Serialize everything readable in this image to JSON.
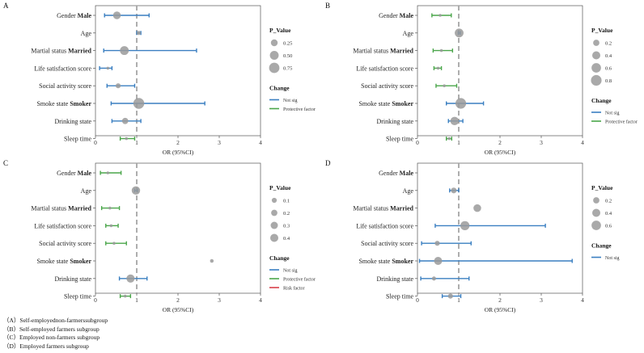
{
  "captions": [
    "（A）Self-employednon-farmerssubgroup",
    "（B）Self-employed farmers subgroup",
    "（C）Employed non-farmers subgroup",
    "（D）Employed farmers subgroup"
  ],
  "colors": {
    "not_sig": "#3a7fc1",
    "protective": "#4aa64a",
    "risk": "#d9404a",
    "point": "#9a9a9a",
    "refline": "#a6a6a6"
  },
  "chart_data": [
    {
      "panel": "A",
      "type": "scatter",
      "xlabel": "OR (95%CI)",
      "xlim": [
        0,
        4
      ],
      "xticks": [
        "0",
        "1",
        "2",
        "3",
        "4"
      ],
      "reference_line": 1,
      "size_legend_title": "P_Value",
      "size_legend": [
        {
          "label": "0.25",
          "value": 0.25
        },
        {
          "label": "0.50",
          "value": 0.5
        },
        {
          "label": "0.75",
          "value": 0.75
        }
      ],
      "color_legend_title": "Change",
      "color_legend": [
        {
          "label": "Not sig",
          "key": "not_sig"
        },
        {
          "label": "Protective factor",
          "key": "protective"
        }
      ],
      "rows": [
        {
          "label_prefix": "Gender",
          "label_bold": "Male",
          "or": 0.52,
          "lo": 0.22,
          "hi": 1.3,
          "p": 0.35,
          "change": "not_sig"
        },
        {
          "label_prefix": "Age",
          "label_bold": "",
          "or": 1.05,
          "lo": 1.0,
          "hi": 1.1,
          "p": 0.05,
          "change": "not_sig"
        },
        {
          "label_prefix": "Martial status",
          "label_bold": "Married",
          "or": 0.7,
          "lo": 0.2,
          "hi": 2.45,
          "p": 0.5,
          "change": "not_sig"
        },
        {
          "label_prefix": "Life satisfaction score",
          "label_bold": "",
          "or": 0.3,
          "lo": 0.1,
          "hi": 0.4,
          "p": 0.01,
          "change": "not_sig"
        },
        {
          "label_prefix": "Social activity score",
          "label_bold": "",
          "or": 0.55,
          "lo": 0.28,
          "hi": 0.95,
          "p": 0.1,
          "change": "not_sig"
        },
        {
          "label_prefix": "Smoke state",
          "label_bold": "Smoker",
          "or": 1.05,
          "lo": 0.38,
          "hi": 2.65,
          "p": 0.85,
          "change": "not_sig"
        },
        {
          "label_prefix": "Drinking state",
          "label_bold": "",
          "or": 0.72,
          "lo": 0.4,
          "hi": 1.1,
          "p": 0.2,
          "change": "not_sig"
        },
        {
          "label_prefix": "Sleep time",
          "label_bold": "",
          "or": 0.75,
          "lo": 0.6,
          "hi": 0.95,
          "p": 0.01,
          "change": "protective"
        }
      ]
    },
    {
      "panel": "B",
      "type": "scatter",
      "xlabel": "OR (95%CI)",
      "xlim": [
        0,
        4
      ],
      "xticks": [
        "0",
        "1",
        "2",
        "3",
        "4"
      ],
      "reference_line": 1,
      "size_legend_title": "P_Value",
      "size_legend": [
        {
          "label": "0.2",
          "value": 0.2
        },
        {
          "label": "0.4",
          "value": 0.4
        },
        {
          "label": "0.6",
          "value": 0.6
        },
        {
          "label": "0.8",
          "value": 0.8
        }
      ],
      "color_legend_title": "Change",
      "color_legend": [
        {
          "label": "Not sig",
          "key": "not_sig"
        },
        {
          "label": "Protective factor",
          "key": "protective"
        }
      ],
      "rows": [
        {
          "label_prefix": "Gender",
          "label_bold": "Male",
          "or": 0.55,
          "lo": 0.35,
          "hi": 0.82,
          "p": 0.01,
          "change": "protective"
        },
        {
          "label_prefix": "Age",
          "label_bold": "",
          "or": 1.01,
          "lo": 0.99,
          "hi": 1.04,
          "p": 0.5,
          "change": "not_sig"
        },
        {
          "label_prefix": "Martial status",
          "label_bold": "Married",
          "or": 0.58,
          "lo": 0.38,
          "hi": 0.85,
          "p": 0.01,
          "change": "protective"
        },
        {
          "label_prefix": "Life satisfaction score",
          "label_bold": "",
          "or": 0.5,
          "lo": 0.4,
          "hi": 0.58,
          "p": 0.01,
          "change": "protective"
        },
        {
          "label_prefix": "Social activity score",
          "label_bold": "",
          "or": 0.65,
          "lo": 0.45,
          "hi": 0.95,
          "p": 0.01,
          "change": "protective"
        },
        {
          "label_prefix": "Smoke state",
          "label_bold": "Smoker",
          "or": 1.05,
          "lo": 0.7,
          "hi": 1.6,
          "p": 0.8,
          "change": "not_sig"
        },
        {
          "label_prefix": "Drinking state",
          "label_bold": "",
          "or": 0.9,
          "lo": 0.75,
          "hi": 1.1,
          "p": 0.45,
          "change": "not_sig"
        },
        {
          "label_prefix": "Sleep time",
          "label_bold": "",
          "or": 0.77,
          "lo": 0.7,
          "hi": 0.83,
          "p": 0.01,
          "change": "protective"
        }
      ]
    },
    {
      "panel": "C",
      "type": "scatter",
      "xlabel": "OR (95%CI)",
      "xlim": [
        0,
        4
      ],
      "xticks": [
        "0",
        "1",
        "2",
        "3",
        "4"
      ],
      "reference_line": 1,
      "size_legend_title": "P_Value",
      "size_legend": [
        {
          "label": "0.1",
          "value": 0.1
        },
        {
          "label": "0.2",
          "value": 0.2
        },
        {
          "label": "0.3",
          "value": 0.3
        },
        {
          "label": "0.4",
          "value": 0.4
        }
      ],
      "color_legend_title": "Change",
      "color_legend": [
        {
          "label": "Not sig",
          "key": "not_sig"
        },
        {
          "label": "Protective factor",
          "key": "protective"
        },
        {
          "label": "Risk factor",
          "key": "risk"
        }
      ],
      "rows": [
        {
          "label_prefix": "Gender",
          "label_bold": "Male",
          "or": 0.3,
          "lo": 0.12,
          "hi": 0.62,
          "p": 0.01,
          "change": "protective"
        },
        {
          "label_prefix": "Age",
          "label_bold": "",
          "or": 0.98,
          "lo": 0.95,
          "hi": 1.02,
          "p": 0.45,
          "change": "not_sig"
        },
        {
          "label_prefix": "Martial status",
          "label_bold": "Married",
          "or": 0.35,
          "lo": 0.15,
          "hi": 0.58,
          "p": 0.01,
          "change": "protective"
        },
        {
          "label_prefix": "Life satisfaction score",
          "label_bold": "",
          "or": 0.38,
          "lo": 0.25,
          "hi": 0.55,
          "p": 0.01,
          "change": "protective"
        },
        {
          "label_prefix": "Social activity score",
          "label_bold": "",
          "or": 0.45,
          "lo": 0.25,
          "hi": 0.75,
          "p": 0.01,
          "change": "protective"
        },
        {
          "label_prefix": "Smoke state",
          "label_bold": "Smoker",
          "or": 2.82,
          "lo": 2.82,
          "hi": 2.82,
          "p": 0.03,
          "change": "not_sig"
        },
        {
          "label_prefix": "Drinking state",
          "label_bold": "",
          "or": 0.85,
          "lo": 0.58,
          "hi": 1.25,
          "p": 0.42,
          "change": "not_sig"
        },
        {
          "label_prefix": "Sleep time",
          "label_bold": "",
          "or": 0.72,
          "lo": 0.6,
          "hi": 0.85,
          "p": 0.01,
          "change": "protective"
        }
      ]
    },
    {
      "panel": "D",
      "type": "scatter",
      "xlabel": "OR (95%CI)",
      "xlim": [
        0,
        4
      ],
      "xticks": [
        "0",
        "1",
        "2",
        "3",
        "4"
      ],
      "reference_line": 1,
      "size_legend_title": "P_Value",
      "size_legend": [
        {
          "label": "0.2",
          "value": 0.2
        },
        {
          "label": "0.4",
          "value": 0.4
        },
        {
          "label": "0.6",
          "value": 0.6
        }
      ],
      "color_legend_title": "Change",
      "color_legend": [
        {
          "label": "Not sig",
          "key": "not_sig"
        }
      ],
      "rows": [
        {
          "label_prefix": "Gender",
          "label_bold": "Male",
          "or": null,
          "lo": null,
          "hi": null,
          "p": null,
          "change": "not_sig"
        },
        {
          "label_prefix": "Age",
          "label_bold": "",
          "or": 0.88,
          "lo": 0.78,
          "hi": 1.0,
          "p": 0.15,
          "change": "not_sig"
        },
        {
          "label_prefix": "Martial status",
          "label_bold": "Married",
          "or": 1.45,
          "lo": 1.45,
          "hi": 1.45,
          "p": 0.35,
          "change": "not_sig"
        },
        {
          "label_prefix": "Life satisfaction score",
          "label_bold": "",
          "or": 1.15,
          "lo": 0.43,
          "hi": 3.1,
          "p": 0.55,
          "change": "not_sig"
        },
        {
          "label_prefix": "Social activity score",
          "label_bold": "",
          "or": 0.48,
          "lo": 0.1,
          "hi": 1.3,
          "p": 0.1,
          "change": "not_sig"
        },
        {
          "label_prefix": "Smoke state",
          "label_bold": "Smoker",
          "or": 0.5,
          "lo": 0.05,
          "hi": 3.75,
          "p": 0.4,
          "change": "not_sig"
        },
        {
          "label_prefix": "Drinking state",
          "label_bold": "",
          "or": 0.4,
          "lo": 0.08,
          "hi": 1.25,
          "p": 0.05,
          "change": "not_sig"
        },
        {
          "label_prefix": "Sleep time",
          "label_bold": "",
          "or": 0.8,
          "lo": 0.6,
          "hi": 1.05,
          "p": 0.1,
          "change": "not_sig"
        }
      ]
    }
  ]
}
